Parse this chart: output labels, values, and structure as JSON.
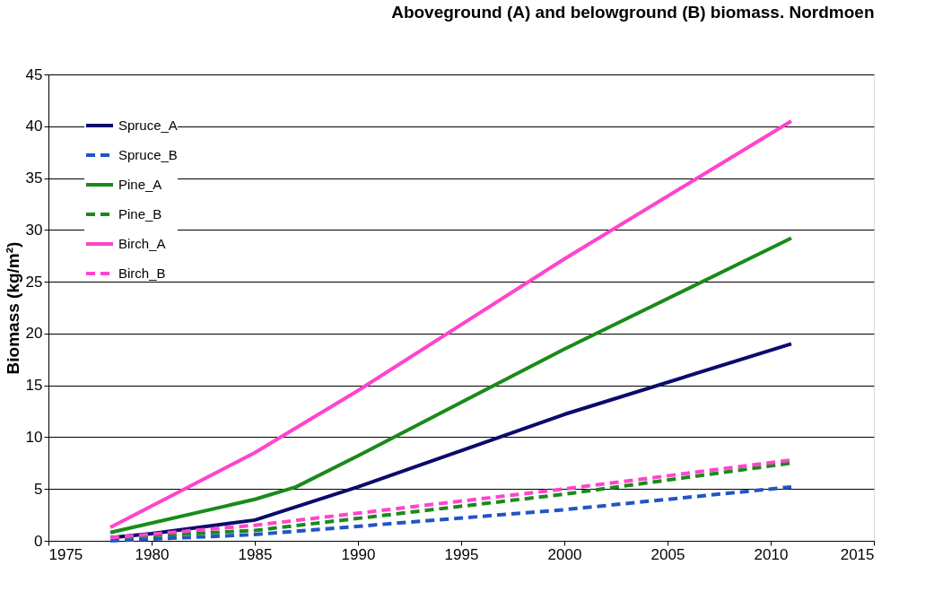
{
  "chart_data": {
    "type": "line",
    "title": "Aboveground (A) and belowground (B) biomass. Nordmoen",
    "ylabel": "Biomass (kg/m²)",
    "xlim": [
      1975,
      2015
    ],
    "xticks": [
      1975,
      1980,
      1985,
      1990,
      1995,
      2000,
      2005,
      2010,
      2015
    ],
    "ylim": [
      0,
      45
    ],
    "yticks": [
      0,
      5,
      10,
      15,
      20,
      25,
      30,
      35,
      40,
      45
    ],
    "grid": "y",
    "legend": "top left",
    "marker": "none",
    "series": [
      {
        "name": "Spruce_A",
        "color": "#0a0a6e",
        "line_style": "solid",
        "x": [
          1978,
          1980,
          1985,
          1990,
          2000,
          2011
        ],
        "values": [
          0.3,
          0.7,
          2.0,
          5.2,
          12.2,
          19.0
        ]
      },
      {
        "name": "Spruce_B",
        "color": "#2255c4",
        "line_style": "dashed",
        "x": [
          1978,
          1985,
          2000,
          2011
        ],
        "values": [
          0.0,
          0.6,
          3.0,
          5.2
        ]
      },
      {
        "name": "Pine_A",
        "color": "#1a8a1a",
        "line_style": "solid",
        "x": [
          1978,
          1985,
          1987,
          1990,
          2000,
          2011
        ],
        "values": [
          0.8,
          4.0,
          5.2,
          8.2,
          18.5,
          29.2
        ]
      },
      {
        "name": "Pine_B",
        "color": "#1a8a1a",
        "line_style": "dashed",
        "x": [
          1978,
          1985,
          2000,
          2011
        ],
        "values": [
          0.3,
          1.0,
          4.5,
          7.5
        ]
      },
      {
        "name": "Birch_A",
        "color": "#ff44cc",
        "line_style": "solid",
        "x": [
          1978,
          1985,
          1990,
          2000,
          2011
        ],
        "values": [
          1.3,
          8.5,
          14.5,
          27.2,
          40.5
        ]
      },
      {
        "name": "Birch_B",
        "color": "#ff44cc",
        "line_style": "dashed",
        "x": [
          1978,
          1985,
          2000,
          2011
        ],
        "values": [
          0.3,
          1.5,
          5.0,
          7.8
        ]
      }
    ]
  }
}
